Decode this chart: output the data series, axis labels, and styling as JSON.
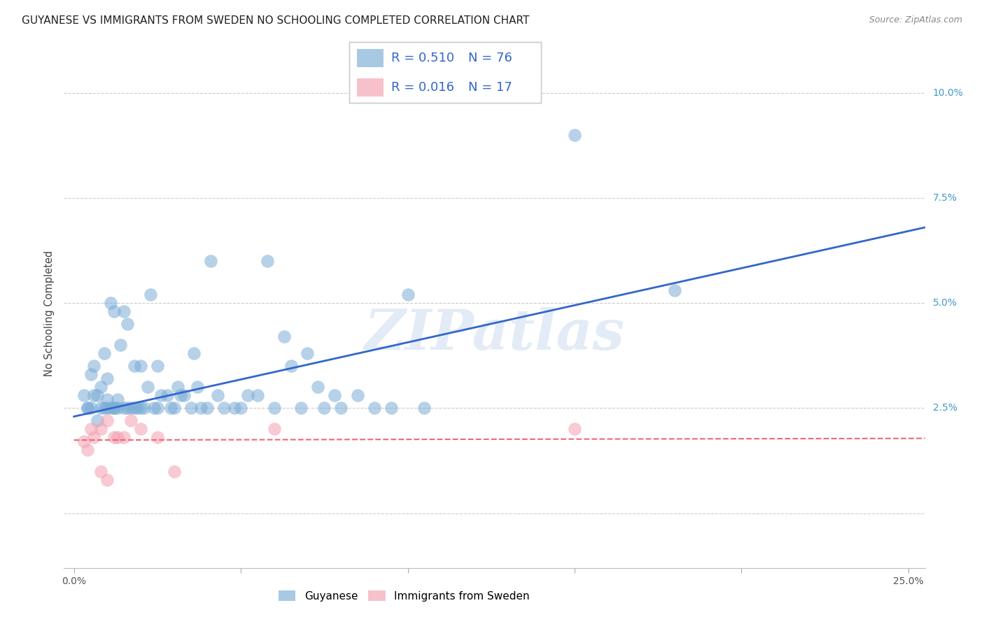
{
  "title": "GUYANESE VS IMMIGRANTS FROM SWEDEN NO SCHOOLING COMPLETED CORRELATION CHART",
  "source": "Source: ZipAtlas.com",
  "ylabel": "No Schooling Completed",
  "xlim": [
    -0.003,
    0.255
  ],
  "ylim": [
    -0.013,
    0.108
  ],
  "xticks": [
    0.0,
    0.05,
    0.1,
    0.15,
    0.2,
    0.25
  ],
  "xticklabels": [
    "0.0%",
    "",
    "",
    "",
    "",
    "25.0%"
  ],
  "yticks": [
    0.0,
    0.025,
    0.05,
    0.075,
    0.1
  ],
  "yticklabels": [
    "",
    "2.5%",
    "5.0%",
    "7.5%",
    "10.0%"
  ],
  "legend1_label": "Guyanese",
  "legend2_label": "Immigrants from Sweden",
  "R1": "0.510",
  "N1": "76",
  "R2": "0.016",
  "N2": "17",
  "blue_color": "#7aacd6",
  "pink_color": "#f4a0b0",
  "line_blue": "#3366cc",
  "line_pink": "#ee6677",
  "watermark": "ZIPatlas",
  "blue_scatter_x": [
    0.003,
    0.004,
    0.004,
    0.005,
    0.005,
    0.006,
    0.006,
    0.007,
    0.007,
    0.008,
    0.008,
    0.009,
    0.009,
    0.01,
    0.01,
    0.01,
    0.011,
    0.011,
    0.012,
    0.012,
    0.012,
    0.013,
    0.013,
    0.014,
    0.015,
    0.015,
    0.016,
    0.016,
    0.017,
    0.018,
    0.018,
    0.019,
    0.02,
    0.02,
    0.021,
    0.022,
    0.023,
    0.024,
    0.025,
    0.025,
    0.026,
    0.028,
    0.029,
    0.03,
    0.031,
    0.032,
    0.033,
    0.035,
    0.036,
    0.037,
    0.038,
    0.04,
    0.041,
    0.043,
    0.045,
    0.048,
    0.05,
    0.052,
    0.055,
    0.058,
    0.06,
    0.063,
    0.065,
    0.068,
    0.07,
    0.073,
    0.075,
    0.078,
    0.08,
    0.085,
    0.09,
    0.095,
    0.1,
    0.105,
    0.15,
    0.18
  ],
  "blue_scatter_y": [
    0.028,
    0.025,
    0.025,
    0.033,
    0.025,
    0.035,
    0.028,
    0.022,
    0.028,
    0.025,
    0.03,
    0.025,
    0.038,
    0.025,
    0.027,
    0.032,
    0.025,
    0.05,
    0.025,
    0.025,
    0.048,
    0.025,
    0.027,
    0.04,
    0.025,
    0.048,
    0.025,
    0.045,
    0.025,
    0.025,
    0.035,
    0.025,
    0.025,
    0.035,
    0.025,
    0.03,
    0.052,
    0.025,
    0.025,
    0.035,
    0.028,
    0.028,
    0.025,
    0.025,
    0.03,
    0.028,
    0.028,
    0.025,
    0.038,
    0.03,
    0.025,
    0.025,
    0.06,
    0.028,
    0.025,
    0.025,
    0.025,
    0.028,
    0.028,
    0.06,
    0.025,
    0.042,
    0.035,
    0.025,
    0.038,
    0.03,
    0.025,
    0.028,
    0.025,
    0.028,
    0.025,
    0.025,
    0.052,
    0.025,
    0.09,
    0.053
  ],
  "pink_scatter_x": [
    0.003,
    0.004,
    0.005,
    0.006,
    0.008,
    0.008,
    0.01,
    0.01,
    0.012,
    0.013,
    0.015,
    0.017,
    0.02,
    0.025,
    0.03,
    0.06,
    0.15
  ],
  "pink_scatter_y": [
    0.017,
    0.015,
    0.02,
    0.018,
    0.02,
    0.01,
    0.022,
    0.008,
    0.018,
    0.018,
    0.018,
    0.022,
    0.02,
    0.018,
    0.01,
    0.02,
    0.02
  ],
  "blue_line_x": [
    0.0,
    0.255
  ],
  "blue_line_y": [
    0.023,
    0.068
  ],
  "pink_line_x": [
    0.0,
    0.255
  ],
  "pink_line_y": [
    0.0174,
    0.0178
  ],
  "background_color": "#ffffff",
  "title_fontsize": 11,
  "axis_label_fontsize": 10.5,
  "tick_fontsize": 10,
  "rn_fontsize": 13
}
